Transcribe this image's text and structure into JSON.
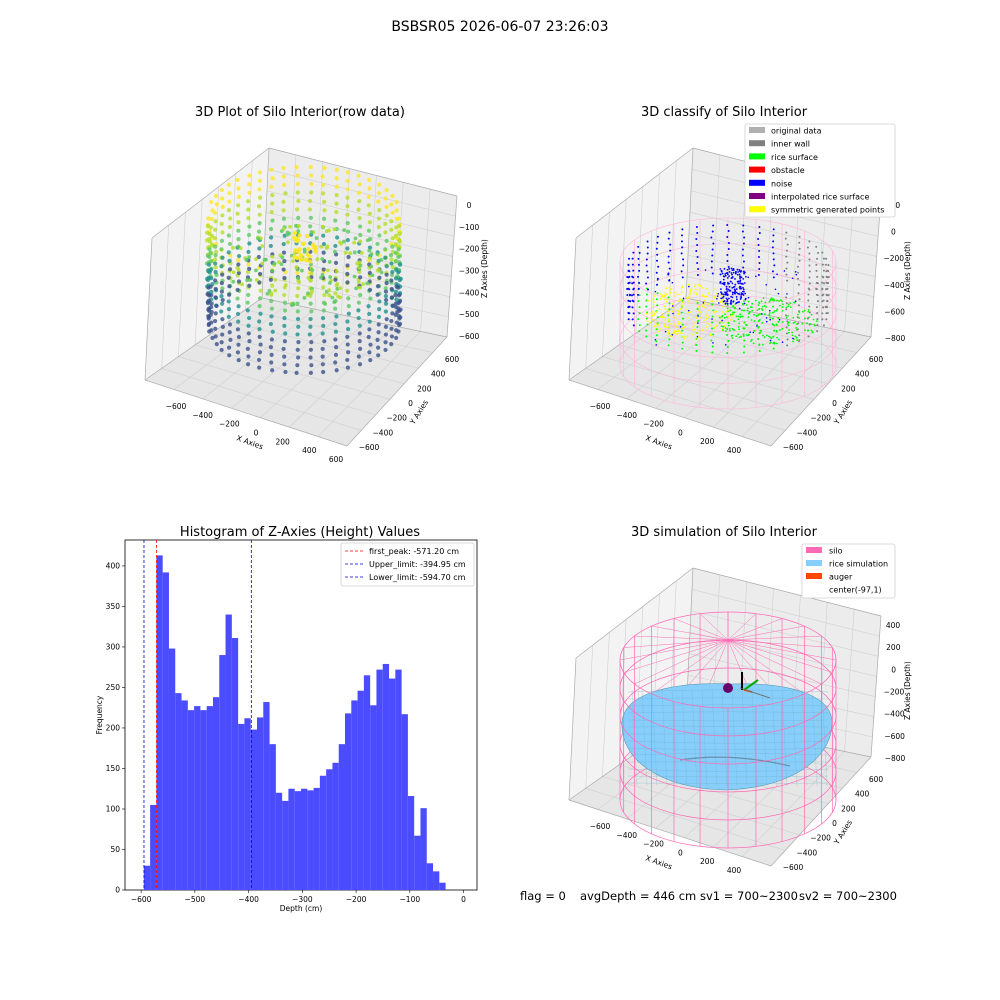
{
  "page_title": "BSBSR05 2026-06-07 23:26:03",
  "footer": {
    "flag": "flag = 0",
    "avg_depth": "avgDepth = 446 cm",
    "sv1": "sv1 = 700~2300",
    "sv2": "sv2 = 700~2300"
  },
  "colors": {
    "histogram_bar": "#4b4bff",
    "first_peak_line": "#ff0000",
    "limit_line": "#0000cc",
    "silo_wire": "#ff69b4",
    "rice_surface": "#87cefa",
    "original_data": "#b0b0b0",
    "inner_wall": "#808080",
    "rice_surface_class": "#00ff00",
    "obstacle": "#ff0000",
    "noise": "#0000ff",
    "interpolated": "#800080",
    "symmetric": "#ffff00",
    "auger": "#ff4500"
  },
  "chart_data": [
    {
      "type": "scatter",
      "projection": "3d",
      "title": "3D Plot of Silo Interior(row data)",
      "xlabel": "X Axies",
      "ylabel": "Y Axies",
      "zlabel": "Z Axies (Depth)",
      "x_ticks": [
        "−600",
        "−400",
        "−200",
        "0",
        "200",
        "400",
        "600"
      ],
      "y_ticks": [
        "−600",
        "−400",
        "−200",
        "0",
        "200",
        "400",
        "600"
      ],
      "z_ticks": [
        "0",
        "−100",
        "−200",
        "−300",
        "−400",
        "−500",
        "−600"
      ],
      "colormap": "viridis"
    },
    {
      "type": "scatter",
      "projection": "3d",
      "title": "3D classify of Silo Interior",
      "xlabel": "X Axies",
      "ylabel": "Y Axies",
      "zlabel": "Z Axies (Depth)",
      "x_ticks": [
        "−600",
        "−400",
        "−200",
        "0",
        "200",
        "400"
      ],
      "y_ticks": [
        "−600",
        "−400",
        "−200",
        "0",
        "200",
        "400",
        "600"
      ],
      "z_ticks": [
        "200",
        "0",
        "−200",
        "−400",
        "−600",
        "−800"
      ],
      "legend": [
        {
          "label": "original data",
          "color": "#b0b0b0"
        },
        {
          "label": "inner wall",
          "color": "#808080"
        },
        {
          "label": "rice surface",
          "color": "#00ff00"
        },
        {
          "label": "obstacle",
          "color": "#ff0000"
        },
        {
          "label": "noise",
          "color": "#0000ff"
        },
        {
          "label": "interpolated rice surface",
          "color": "#800080"
        },
        {
          "label": "symmetric generated points",
          "color": "#ffff00"
        }
      ],
      "legend_position": "top-right"
    },
    {
      "type": "bar",
      "subtype": "histogram",
      "title": "Histogram of Z-Axies (Height) Values",
      "xlabel": "Depth (cm)",
      "ylabel": "Frequency",
      "xlim": [
        -630,
        25
      ],
      "ylim": [
        0,
        432
      ],
      "x_ticks": [
        -600,
        -500,
        -400,
        -300,
        -200,
        -100,
        0
      ],
      "x_tick_labels": [
        "−600",
        "−500",
        "−400",
        "−300",
        "−200",
        "−100",
        "0"
      ],
      "y_ticks": [
        0,
        50,
        100,
        150,
        200,
        250,
        300,
        350,
        400
      ],
      "bin_start": -595,
      "bin_width": 11.7,
      "values": [
        30,
        105,
        413,
        392,
        298,
        243,
        234,
        222,
        227,
        222,
        227,
        238,
        290,
        340,
        311,
        205,
        212,
        198,
        213,
        232,
        180,
        120,
        110,
        125,
        122,
        125,
        123,
        126,
        141,
        149,
        157,
        180,
        218,
        234,
        246,
        265,
        228,
        272,
        279,
        261,
        272,
        217,
        116,
        67,
        101,
        33,
        23,
        9
      ],
      "vlines": [
        {
          "x": -571.2,
          "label": "first_peak: -571.20 cm",
          "color": "#ff0000"
        },
        {
          "x": -394.95,
          "label": "Upper_limit: -394.95 cm",
          "color": "#0000cc"
        },
        {
          "x": -594.7,
          "label": "Lower_limit: -594.70 cm",
          "color": "#0000cc"
        }
      ],
      "legend_position": "top-right"
    },
    {
      "type": "surface",
      "projection": "3d",
      "title": "3D simulation of Silo Interior",
      "xlabel": "X Axies",
      "ylabel": "Y Axies",
      "zlabel": "Z Axies (Depth)",
      "x_ticks": [
        "−600",
        "−400",
        "−200",
        "0",
        "200",
        "400"
      ],
      "y_ticks": [
        "−600",
        "−400",
        "−200",
        "0",
        "200",
        "400",
        "600"
      ],
      "z_ticks": [
        "400",
        "200",
        "0",
        "−200",
        "−400",
        "−600",
        "−800"
      ],
      "legend": [
        {
          "label": "silo",
          "color": "#ff69b4"
        },
        {
          "label": "rice simulation",
          "color": "#87cefa"
        },
        {
          "label": "auger",
          "color": "#ff4500"
        },
        {
          "label": "center(-97,1)",
          "color": "#ffffff"
        }
      ],
      "legend_position": "top-right"
    }
  ]
}
